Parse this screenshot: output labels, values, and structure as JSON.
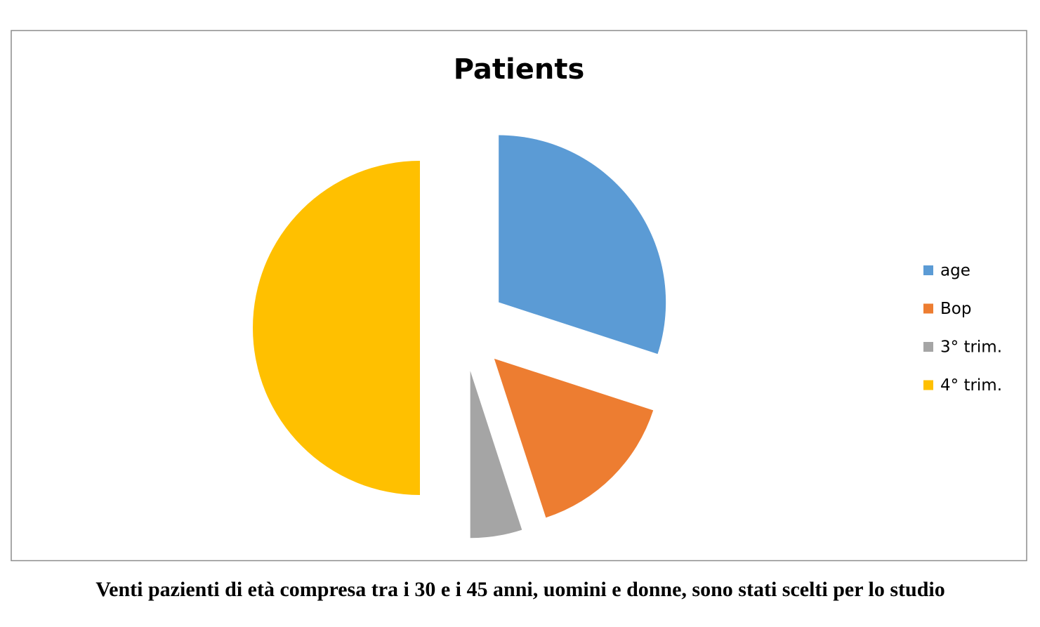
{
  "chart_data": {
    "type": "pie",
    "title": "Patients",
    "categories": [
      "age",
      "Bop",
      "3° trim.",
      "4° trim."
    ],
    "values": [
      30,
      15,
      5,
      50
    ],
    "colors": [
      "#5b9bd5",
      "#ed7d31",
      "#a5a5a5",
      "#ffc000"
    ],
    "exploded": true,
    "legend": "right"
  },
  "caption": "Venti pazienti di età compresa tra i 30 e i 45 anni, uomini e donne, sono stati scelti per lo studio"
}
